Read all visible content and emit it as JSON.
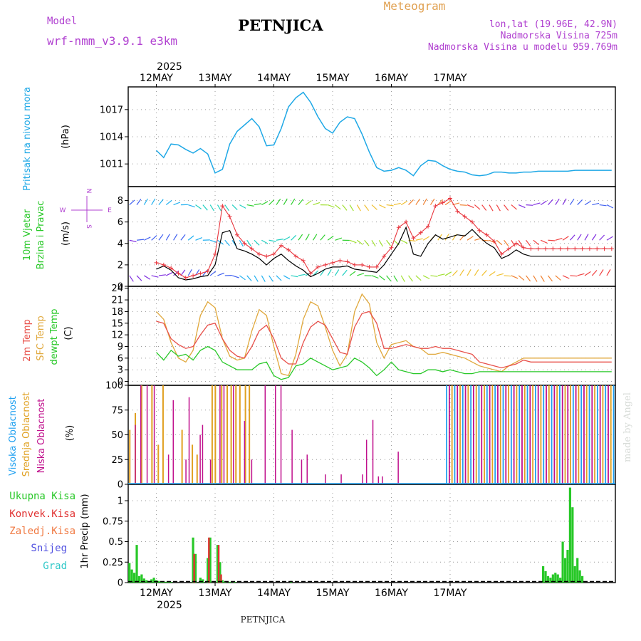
{
  "header": {
    "model_label": "Model",
    "model_name": "wrf-nmm_v3.9.1 e3km",
    "title": "PETNJICA",
    "subtitle": "Meteogram",
    "lonlat": "lon,lat (19.96E, 42.9N)",
    "altitude": "Nadmorska Visina 725m",
    "model_altitude": "Nadmorska Visina u modelu 959.769m",
    "year": "2025",
    "footer_station": "PETNJICA",
    "credit": "made by Angel"
  },
  "colors": {
    "pressure": "#1ea8e6",
    "wind_speed": "#000000",
    "gust": "#e8343c",
    "temp": "#e8504a",
    "sfc_temp": "#e0a83c",
    "dewpoint": "#28c828",
    "high_cloud": "#20a0f0",
    "mid_cloud": "#e0a020",
    "low_cloud": "#c0108c",
    "precip_total": "#28c828",
    "precip_conv": "#e03030",
    "label_purple": "#b040d0"
  },
  "chart_data": [
    {
      "type": "line",
      "name": "pressure",
      "ylabel": "Pritisak na nivou mora",
      "units": "(hPa)",
      "ylim": [
        1008.5,
        1019.5
      ],
      "yticks": [
        1011,
        1014,
        1017
      ],
      "x_hours": [
        0,
        3,
        6,
        9,
        12,
        15,
        18,
        21,
        24,
        27,
        30,
        33,
        36,
        39,
        42,
        45,
        48,
        51,
        54,
        57,
        60,
        63,
        66,
        69,
        72,
        75,
        78,
        81,
        84,
        87,
        90,
        93,
        96,
        99,
        102,
        105,
        108,
        111,
        114,
        117,
        120,
        123,
        126,
        129,
        132,
        135,
        138,
        141,
        144,
        147,
        150,
        153,
        156,
        159,
        162,
        165,
        168,
        171,
        174,
        177,
        180,
        183,
        186
      ],
      "series": [
        {
          "name": "MSLP",
          "values": [
            1012.5,
            1011.7,
            1013.2,
            1013.1,
            1012.6,
            1012.2,
            1012.7,
            1012.1,
            1010.0,
            1010.4,
            1013.2,
            1014.6,
            1015.3,
            1016.0,
            1015.1,
            1013.0,
            1013.1,
            1014.9,
            1017.3,
            1018.3,
            1018.9,
            1017.8,
            1016.2,
            1014.9,
            1014.4,
            1015.6,
            1016.2,
            1016.0,
            1014.3,
            1012.3,
            1010.6,
            1010.2,
            1010.3,
            1010.6,
            1010.3,
            1009.7,
            1010.8,
            1011.4,
            1011.3,
            1010.8,
            1010.4,
            1010.2,
            1010.1,
            1009.8,
            1009.7,
            1009.8,
            1010.1,
            1010.1,
            1010.0,
            1010.0,
            1010.1,
            1010.1,
            1010.2,
            1010.2,
            1010.2,
            1010.2,
            1010.2,
            1010.3,
            1010.3,
            1010.3,
            1010.3,
            1010.3,
            1010.3
          ]
        }
      ]
    },
    {
      "type": "line",
      "name": "wind",
      "ylabel": "10m Vjetar Brzina i Pravac",
      "units": "(m/s)",
      "compass": {
        "n": "N",
        "s": "S",
        "e": "E",
        "w": "W"
      },
      "ylim": [
        0,
        9.3
      ],
      "yticks": [
        0,
        2,
        4,
        6,
        8
      ],
      "x_hours": [
        0,
        3,
        6,
        9,
        12,
        15,
        18,
        21,
        24,
        27,
        30,
        33,
        36,
        39,
        42,
        45,
        48,
        51,
        54,
        57,
        60,
        63,
        66,
        69,
        72,
        75,
        78,
        81,
        84,
        87,
        90,
        93,
        96,
        99,
        102,
        105,
        108,
        111,
        114,
        117,
        120,
        123,
        126,
        129,
        132,
        135,
        138,
        141,
        144,
        147,
        150,
        153,
        156,
        159,
        162,
        165,
        168,
        171,
        174,
        177,
        180,
        183,
        186
      ],
      "series": [
        {
          "name": "Speed",
          "values": [
            1.6,
            1.9,
            1.5,
            0.8,
            0.6,
            0.7,
            0.9,
            1.0,
            2.0,
            5.0,
            5.2,
            3.5,
            3.3,
            3.0,
            2.6,
            2.0,
            2.6,
            3.0,
            2.4,
            1.9,
            1.5,
            0.9,
            1.2,
            1.6,
            1.8,
            1.8,
            1.9,
            1.6,
            1.5,
            1.4,
            1.3,
            2.0,
            3.0,
            4.0,
            5.5,
            3.0,
            2.8,
            4.0,
            4.8,
            4.4,
            4.6,
            4.8,
            4.7,
            5.3,
            4.6,
            4.0,
            3.6,
            2.6,
            2.9,
            3.4,
            3.0,
            2.8,
            2.8,
            2.8,
            2.8,
            2.8,
            2.8,
            2.8,
            2.8,
            2.8,
            2.8,
            2.8,
            2.8
          ]
        },
        {
          "name": "Gust",
          "values": [
            2.2,
            2.0,
            1.7,
            1.2,
            0.8,
            1.0,
            1.2,
            1.4,
            3.0,
            7.5,
            6.5,
            4.8,
            4.0,
            3.5,
            3.0,
            2.8,
            3.0,
            3.8,
            3.4,
            2.8,
            2.4,
            1.2,
            1.8,
            2.0,
            2.2,
            2.4,
            2.3,
            2.0,
            2.0,
            1.8,
            1.8,
            2.8,
            3.6,
            5.5,
            6.0,
            4.5,
            5.0,
            5.6,
            7.5,
            7.8,
            8.2,
            7.0,
            6.5,
            6.0,
            5.2,
            4.8,
            4.2,
            3.0,
            3.5,
            4.0,
            3.6,
            3.5,
            3.5,
            3.5,
            3.5,
            3.5,
            3.5,
            3.5,
            3.5,
            3.5,
            3.5,
            3.5,
            3.5
          ]
        }
      ]
    },
    {
      "type": "line",
      "name": "temperature",
      "ylabel_temp": "2m Temp",
      "ylabel_sfc": "SFC Temp",
      "ylabel_dew": "dewpt Temp",
      "units": "(C)",
      "ylim": [
        -1,
        24.5
      ],
      "yticks": [
        0,
        3,
        6,
        9,
        12,
        15,
        18,
        21,
        24
      ],
      "x_hours": [
        0,
        3,
        6,
        9,
        12,
        15,
        18,
        21,
        24,
        27,
        30,
        33,
        36,
        39,
        42,
        45,
        48,
        51,
        54,
        57,
        60,
        63,
        66,
        69,
        72,
        75,
        78,
        81,
        84,
        87,
        90,
        93,
        96,
        99,
        102,
        105,
        108,
        111,
        114,
        117,
        120,
        123,
        126,
        129,
        132,
        135,
        138,
        141,
        144,
        147,
        150,
        153,
        156,
        159,
        162,
        165,
        168,
        171,
        174,
        177,
        180,
        183,
        186
      ],
      "series": [
        {
          "name": "2m Temp",
          "values": [
            15.5,
            15.0,
            11.0,
            9.5,
            8.5,
            9.0,
            12.0,
            14.5,
            15.0,
            11.0,
            8.0,
            6.5,
            6.0,
            9.0,
            13.0,
            14.5,
            11.0,
            6.0,
            4.5,
            4.5,
            10.0,
            14.0,
            15.5,
            14.5,
            11.0,
            7.5,
            7.0,
            14.0,
            17.5,
            18.0,
            15.0,
            8.5,
            8.5,
            9.0,
            9.5,
            9.0,
            8.5,
            8.5,
            9.0,
            8.5,
            8.5,
            8.0,
            7.5,
            7.0,
            5.0,
            4.5,
            4.0,
            3.5,
            4.0,
            4.5,
            5.5,
            5.0,
            5.0,
            5.0,
            5.0,
            5.0,
            5.0,
            5.0,
            5.0,
            5.0,
            5.0,
            5.0,
            5.0
          ]
        },
        {
          "name": "SFC Temp",
          "values": [
            18.0,
            16.0,
            10.0,
            6.0,
            5.0,
            8.0,
            17.0,
            20.5,
            19.0,
            11.0,
            6.5,
            5.5,
            6.0,
            13.0,
            18.5,
            17.0,
            9.0,
            2.0,
            1.5,
            7.0,
            16.0,
            20.5,
            19.5,
            14.0,
            8.0,
            4.0,
            7.0,
            18.0,
            22.5,
            20.0,
            10.0,
            6.0,
            9.5,
            10.0,
            10.5,
            9.0,
            8.5,
            7.0,
            7.0,
            7.5,
            7.0,
            6.5,
            6.0,
            5.0,
            4.0,
            3.5,
            3.0,
            2.5,
            4.0,
            5.0,
            6.0,
            6.0,
            6.0,
            6.0,
            6.0,
            6.0,
            6.0,
            6.0,
            6.0,
            6.0,
            6.0,
            6.0,
            6.0
          ]
        },
        {
          "name": "Dewpoint",
          "values": [
            7.5,
            5.5,
            8.0,
            6.5,
            7.0,
            5.5,
            8.0,
            9.0,
            8.0,
            5.0,
            4.0,
            3.0,
            3.0,
            3.0,
            4.5,
            5.0,
            1.5,
            0.5,
            1.0,
            4.0,
            4.5,
            6.0,
            5.0,
            4.0,
            3.0,
            3.5,
            4.0,
            6.0,
            5.0,
            3.5,
            1.5,
            3.0,
            5.0,
            3.0,
            2.5,
            2.0,
            2.0,
            3.0,
            3.0,
            2.5,
            3.0,
            2.5,
            2.0,
            2.0,
            2.5,
            2.5,
            2.5,
            2.5,
            2.5,
            2.5,
            2.5,
            2.5,
            2.5,
            2.5,
            2.5,
            2.5,
            2.5,
            2.5,
            2.5,
            2.5,
            2.5,
            2.5,
            2.5
          ]
        }
      ]
    },
    {
      "type": "bar",
      "name": "cloud_cover",
      "ylabel_high": "Visoka Oblacnost",
      "ylabel_mid": "Srednja Oblacnost",
      "ylabel_low": "Niska Oblacnost",
      "units": "(%)",
      "ylim": [
        0,
        100
      ],
      "yticks": [
        0,
        25,
        50,
        75,
        100
      ],
      "low": [
        [
          0.8,
          60
        ],
        [
          1.5,
          100
        ],
        [
          2.3,
          100
        ],
        [
          3.2,
          100
        ],
        [
          5.0,
          30
        ],
        [
          5.6,
          85
        ],
        [
          7.2,
          25
        ],
        [
          7.6,
          88
        ],
        [
          9.0,
          50
        ],
        [
          9.3,
          60
        ],
        [
          10.3,
          25
        ],
        [
          11.5,
          100
        ],
        [
          12.0,
          100
        ],
        [
          13.2,
          100
        ],
        [
          14.6,
          64
        ],
        [
          15.5,
          25
        ],
        [
          17.2,
          100
        ],
        [
          18.5,
          100
        ],
        [
          19.2,
          100
        ],
        [
          20.6,
          55
        ],
        [
          21.8,
          25
        ],
        [
          22.5,
          30
        ],
        [
          24.8,
          10
        ],
        [
          26.8,
          10
        ],
        [
          29.5,
          10
        ],
        [
          30.0,
          45
        ],
        [
          30.8,
          65
        ],
        [
          31.5,
          8
        ],
        [
          32.0,
          8
        ],
        [
          34.0,
          33
        ]
      ],
      "mid": [
        [
          0.2,
          55
        ],
        [
          0.9,
          72
        ],
        [
          1.7,
          100
        ],
        [
          3.0,
          100
        ],
        [
          3.8,
          40
        ],
        [
          4.4,
          100
        ],
        [
          6.8,
          55
        ],
        [
          8.1,
          40
        ],
        [
          8.7,
          30
        ],
        [
          10.6,
          100
        ],
        [
          11.0,
          100
        ],
        [
          11.8,
          100
        ],
        [
          12.5,
          100
        ],
        [
          13.0,
          100
        ],
        [
          13.6,
          100
        ],
        [
          14.1,
          100
        ],
        [
          14.8,
          100
        ],
        [
          15.3,
          100
        ]
      ],
      "band": {
        "start": 40.2,
        "end": 61.3,
        "value": 100
      },
      "x_note": "x in 6-hour units from chart start"
    },
    {
      "type": "bar",
      "name": "precipitation",
      "ylabel_total": "Ukupna Kisa",
      "ylabel_conv": "Konvek.Kisa",
      "ylabel_frz": "Zaledj.Kisa",
      "ylabel_snow": "Snijeg",
      "ylabel_hail": "Grad",
      "ylabel_units": "1hr Precip (mm)",
      "ylim": [
        0,
        1.2
      ],
      "yticks": [
        "0",
        "0.25",
        "0.5",
        "0.75",
        "1"
      ],
      "x_hours": [
        1,
        2,
        3,
        4,
        5,
        6,
        7,
        8,
        9,
        10,
        11,
        12,
        13,
        14,
        15,
        16,
        17,
        18,
        27,
        28,
        30,
        31,
        33,
        34,
        37,
        38,
        39,
        40,
        42,
        44,
        67,
        170,
        171,
        172,
        173,
        174,
        175,
        176,
        177,
        178,
        179,
        180,
        181,
        182,
        183,
        184,
        185,
        186
      ],
      "values": [
        0.24,
        0.16,
        0.12,
        0.46,
        0.08,
        0.1,
        0.05,
        0.03,
        0.02,
        0.04,
        0.06,
        0.03,
        0.02,
        0.01,
        0.01,
        0.01,
        0.01,
        0.01,
        0.55,
        0.35,
        0.06,
        0.04,
        0.3,
        0.55,
        0.46,
        0.25,
        0.03,
        0.01,
        0.01,
        0.01,
        0.02,
        0.2,
        0.14,
        0.08,
        0.06,
        0.1,
        0.12,
        0.1,
        0.06,
        0.5,
        0.3,
        0.4,
        1.16,
        0.92,
        0.2,
        0.3,
        0.15,
        0.08
      ],
      "conv_hours": [
        27,
        33,
        37,
        38
      ],
      "conv_values": [
        0.35,
        0.55,
        0.46,
        0.1
      ]
    }
  ],
  "x_axis": {
    "day_labels": [
      "12MAY",
      "13MAY",
      "14MAY",
      "15MAY",
      "16MAY",
      "17MAY"
    ],
    "year_label": "2025"
  }
}
